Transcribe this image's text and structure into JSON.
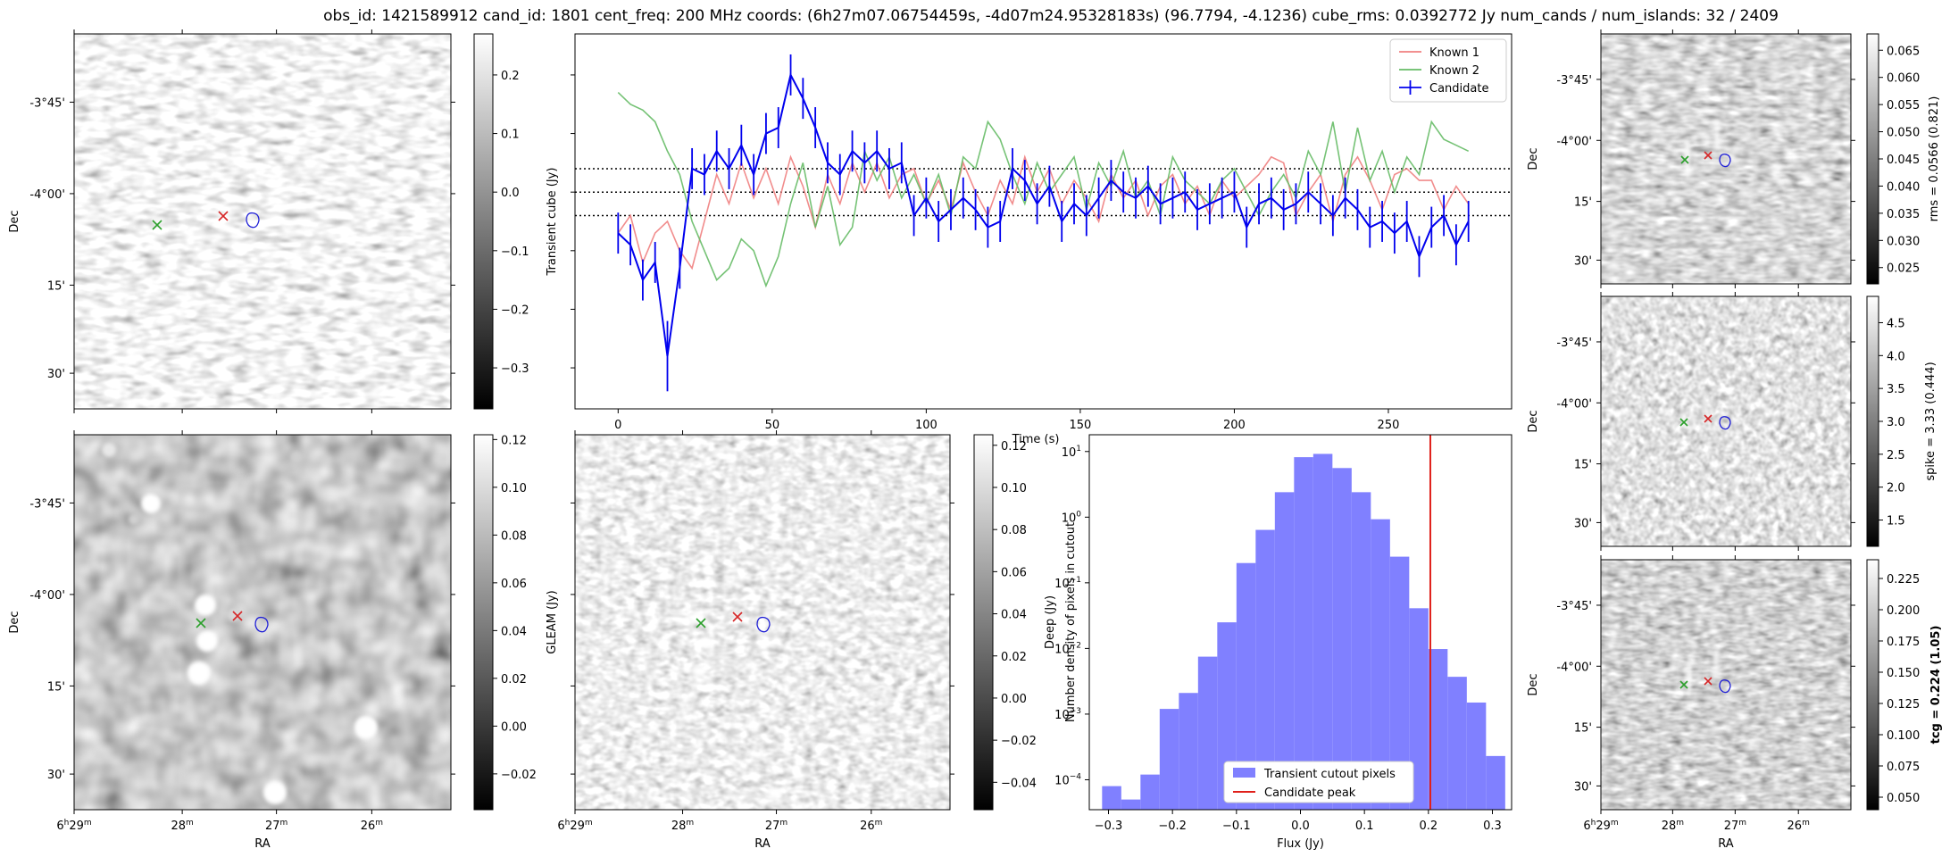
{
  "title": "obs_id: 1421589912 cand_id: 1801 cent_freq: 200 MHz coords: (6h27m07.06754459s, -4d07m24.95328183s) (96.7794, -4.1236) cube_rms: 0.0392772 Jy num_cands / num_islands: 32 / 2409",
  "sky_axes": {
    "xlabel": "RA",
    "ylabel": "Dec",
    "ra_ticks": [
      "6h29m",
      "28m",
      "27m",
      "26m"
    ],
    "ra_first_tick": {
      "h": "6",
      "hsup": "h",
      "m": "29",
      "msup": "m"
    },
    "dec_ticks": [
      "-3°45'",
      "-4°00'",
      "15'",
      "30'"
    ]
  },
  "markers": {
    "known1": "known-1-red-x",
    "known2": "known-2-green-x",
    "candidate": "candidate-blue-contour",
    "red": "#d62728",
    "green": "#2ca02c",
    "blue": "#1f1fd6"
  },
  "colorbars": {
    "transient": {
      "label": "Transient cube (Jy)",
      "ticks": [
        "0.2",
        "0.1",
        "0.0",
        "−0.1",
        "−0.2",
        "−0.3"
      ],
      "tick_values": [
        0.2,
        0.1,
        0.0,
        -0.1,
        -0.2,
        -0.3
      ],
      "range": [
        -0.37,
        0.27
      ]
    },
    "gleam": {
      "label": "GLEAM (Jy)",
      "ticks": [
        "0.12",
        "0.10",
        "0.08",
        "0.06",
        "0.04",
        "0.02",
        "0.00",
        "−0.02"
      ],
      "tick_values": [
        0.12,
        0.1,
        0.08,
        0.06,
        0.04,
        0.02,
        0.0,
        -0.02
      ],
      "range": [
        -0.035,
        0.122
      ]
    },
    "deep": {
      "label": "Deep (Jy)",
      "ticks": [
        "0.12",
        "0.10",
        "0.08",
        "0.06",
        "0.04",
        "0.02",
        "0.00",
        "−0.02",
        "−0.04"
      ],
      "tick_values": [
        0.12,
        0.1,
        0.08,
        0.06,
        0.04,
        0.02,
        0.0,
        -0.02,
        -0.04
      ],
      "range": [
        -0.053,
        0.125
      ]
    },
    "rms": {
      "label": "rms = 0.0566 (0.821)",
      "ticks": [
        "0.065",
        "0.060",
        "0.055",
        "0.050",
        "0.045",
        "0.040",
        "0.035",
        "0.030",
        "0.025"
      ],
      "tick_values": [
        0.065,
        0.06,
        0.055,
        0.05,
        0.045,
        0.04,
        0.035,
        0.03,
        0.025
      ],
      "range": [
        0.022,
        0.068
      ]
    },
    "spike": {
      "label": "spike = 3.33 (0.444)",
      "ticks": [
        "4.5",
        "4.0",
        "3.5",
        "3.0",
        "2.5",
        "2.0",
        "1.5"
      ],
      "tick_values": [
        4.5,
        4.0,
        3.5,
        3.0,
        2.5,
        2.0,
        1.5
      ],
      "range": [
        1.1,
        4.9
      ]
    },
    "tcg": {
      "label": "tcg = 0.224 (1.05)",
      "ticks": [
        "0.225",
        "0.200",
        "0.175",
        "0.150",
        "0.125",
        "0.100",
        "0.075",
        "0.050"
      ],
      "tick_values": [
        0.225,
        0.2,
        0.175,
        0.15,
        0.125,
        0.1,
        0.075,
        0.05
      ],
      "range": [
        0.04,
        0.24
      ]
    }
  },
  "chart_data": [
    {
      "type": "line",
      "name": "light-curve",
      "xlabel": "Time (s)",
      "ylabel": "",
      "xlim": [
        -14,
        290
      ],
      "ylim": [
        -0.37,
        0.27
      ],
      "xticks": [
        0,
        50,
        100,
        150,
        200,
        250
      ],
      "tick_labels": [
        "0",
        "50",
        "100",
        "150",
        "200",
        "250"
      ],
      "hlines": [
        0.04,
        0.0,
        -0.04
      ],
      "legend": "top-right",
      "legend_labels": [
        "Known 1",
        "Known 2",
        "Candidate"
      ],
      "x": [
        0,
        4,
        8,
        12,
        16,
        20,
        24,
        28,
        32,
        36,
        40,
        44,
        48,
        52,
        56,
        60,
        64,
        68,
        72,
        76,
        80,
        84,
        88,
        92,
        96,
        100,
        104,
        108,
        112,
        116,
        120,
        124,
        128,
        132,
        136,
        140,
        144,
        148,
        152,
        156,
        160,
        164,
        168,
        172,
        176,
        180,
        184,
        188,
        192,
        196,
        200,
        204,
        208,
        212,
        216,
        220,
        224,
        228,
        232,
        236,
        240,
        244,
        248,
        252,
        256,
        260,
        264,
        268,
        272,
        276
      ],
      "series": [
        {
          "name": "Known 1",
          "color": "#f08080",
          "values": [
            -0.07,
            -0.04,
            -0.12,
            -0.07,
            -0.05,
            -0.1,
            -0.13,
            -0.05,
            0.03,
            -0.02,
            0.05,
            -0.01,
            0.04,
            -0.02,
            0.06,
            0.01,
            -0.06,
            0.03,
            -0.02,
            0.05,
            0.0,
            0.05,
            -0.01,
            0.03,
            0.04,
            -0.02,
            0.02,
            -0.03,
            0.05,
            0.0,
            -0.04,
            0.02,
            -0.02,
            0.06,
            0.0,
            0.04,
            -0.02,
            0.02,
            -0.01,
            -0.05,
            0.03,
            -0.01,
            0.02,
            -0.04,
            0.01,
            0.03,
            -0.02,
            0.01,
            -0.04,
            0.02,
            -0.01,
            0.01,
            0.03,
            0.06,
            0.05,
            -0.04,
            0.0,
            0.03,
            -0.05,
            0.03,
            0.06,
            0.02,
            -0.03,
            0.03,
            0.04,
            0.02,
            0.02,
            -0.03,
            0.01,
            -0.02
          ]
        },
        {
          "name": "Known 2",
          "color": "#66bb66",
          "values": [
            0.17,
            0.15,
            0.14,
            0.12,
            0.07,
            0.03,
            -0.05,
            -0.1,
            -0.15,
            -0.13,
            -0.08,
            -0.1,
            -0.16,
            -0.11,
            -0.02,
            0.05,
            -0.06,
            0.01,
            -0.09,
            -0.06,
            0.07,
            0.02,
            0.06,
            -0.01,
            0.03,
            -0.02,
            0.03,
            -0.04,
            0.06,
            0.04,
            0.12,
            0.09,
            0.03,
            -0.02,
            0.05,
            0.0,
            0.03,
            0.06,
            -0.03,
            0.05,
            0.01,
            0.07,
            -0.01,
            0.02,
            -0.04,
            0.06,
            0.02,
            0.0,
            -0.02,
            0.02,
            0.04,
            0.0,
            -0.04,
            0.0,
            0.03,
            -0.01,
            0.07,
            0.03,
            0.12,
            0.0,
            0.11,
            0.02,
            0.07,
            0.0,
            0.06,
            0.03,
            0.12,
            0.09,
            0.08,
            0.07
          ]
        },
        {
          "name": "Candidate",
          "color": "#0000ee",
          "values": [
            -0.07,
            -0.09,
            -0.15,
            -0.12,
            -0.28,
            -0.13,
            0.04,
            0.03,
            0.07,
            0.04,
            0.08,
            0.03,
            0.1,
            0.11,
            0.2,
            0.16,
            0.11,
            0.05,
            0.03,
            0.07,
            0.05,
            0.07,
            0.04,
            0.05,
            -0.04,
            -0.01,
            -0.05,
            -0.03,
            -0.01,
            -0.03,
            -0.06,
            -0.05,
            0.04,
            0.02,
            -0.02,
            0.01,
            -0.05,
            -0.02,
            -0.04,
            -0.01,
            0.02,
            0.0,
            -0.01,
            0.01,
            -0.02,
            -0.01,
            0.0,
            -0.03,
            -0.02,
            -0.01,
            0.0,
            -0.06,
            -0.02,
            -0.01,
            -0.03,
            -0.02,
            0.0,
            -0.02,
            -0.04,
            -0.01,
            -0.03,
            -0.06,
            -0.05,
            -0.07,
            -0.05,
            -0.11,
            -0.06,
            -0.04,
            -0.09,
            -0.05
          ],
          "errors": [
            0.035,
            0.035,
            0.035,
            0.035,
            0.06,
            0.035,
            0.035,
            0.035,
            0.035,
            0.035,
            0.035,
            0.035,
            0.035,
            0.035,
            0.035,
            0.035,
            0.035,
            0.035,
            0.035,
            0.035,
            0.035,
            0.035,
            0.035,
            0.035,
            0.035,
            0.035,
            0.035,
            0.035,
            0.035,
            0.035,
            0.035,
            0.035,
            0.035,
            0.035,
            0.035,
            0.035,
            0.035,
            0.035,
            0.035,
            0.035,
            0.035,
            0.035,
            0.035,
            0.035,
            0.035,
            0.035,
            0.035,
            0.035,
            0.035,
            0.035,
            0.035,
            0.035,
            0.035,
            0.035,
            0.035,
            0.035,
            0.035,
            0.035,
            0.035,
            0.035,
            0.035,
            0.035,
            0.035,
            0.035,
            0.035,
            0.035,
            0.035,
            0.035,
            0.035,
            0.035
          ]
        }
      ]
    },
    {
      "type": "bar",
      "name": "flux-histogram",
      "xlabel": "Flux (Jy)",
      "ylabel": "Number density of pixels in cutout",
      "yscale": "log",
      "xlim": [
        -0.33,
        0.33
      ],
      "ylim": [
        3.5e-05,
        18
      ],
      "xticks": [
        -0.3,
        -0.2,
        -0.1,
        0.0,
        0.1,
        0.2,
        0.3
      ],
      "tick_labels": [
        "−0.3",
        "−0.2",
        "−0.1",
        "0.0",
        "0.1",
        "0.2",
        "0.3"
      ],
      "ytick_values": [
        0.0001,
        0.001,
        0.01,
        0.1,
        1,
        10
      ],
      "ytick_labels": [
        {
          "base": "10",
          "exp": "−4"
        },
        {
          "base": "10",
          "exp": "−3"
        },
        {
          "base": "10",
          "exp": "−2"
        },
        {
          "base": "10",
          "exp": "−1"
        },
        {
          "base": "10",
          "exp": "0"
        },
        {
          "base": "10",
          "exp": "1"
        }
      ],
      "bin_edges": [
        -0.31,
        -0.28,
        -0.25,
        -0.22,
        -0.19,
        -0.16,
        -0.13,
        -0.1,
        -0.07,
        -0.04,
        -0.01,
        0.02,
        0.05,
        0.08,
        0.11,
        0.14,
        0.17,
        0.2,
        0.23,
        0.26,
        0.29
      ],
      "values": [
        8e-05,
        5e-05,
        0.00012,
        0.0012,
        0.0021,
        0.0075,
        0.025,
        0.2,
        0.64,
        2.4,
        8.2,
        9.2,
        5.6,
        2.4,
        0.93,
        0.25,
        0.041,
        0.0098,
        0.0037,
        0.0015,
        0.00023
      ],
      "candidate_peak": 0.203,
      "legend": "bottom-center",
      "legend_labels": [
        "Transient cutout pixels",
        "Candidate peak"
      ],
      "bar_color": "#8080ff",
      "peak_color": "#e0201a"
    }
  ]
}
